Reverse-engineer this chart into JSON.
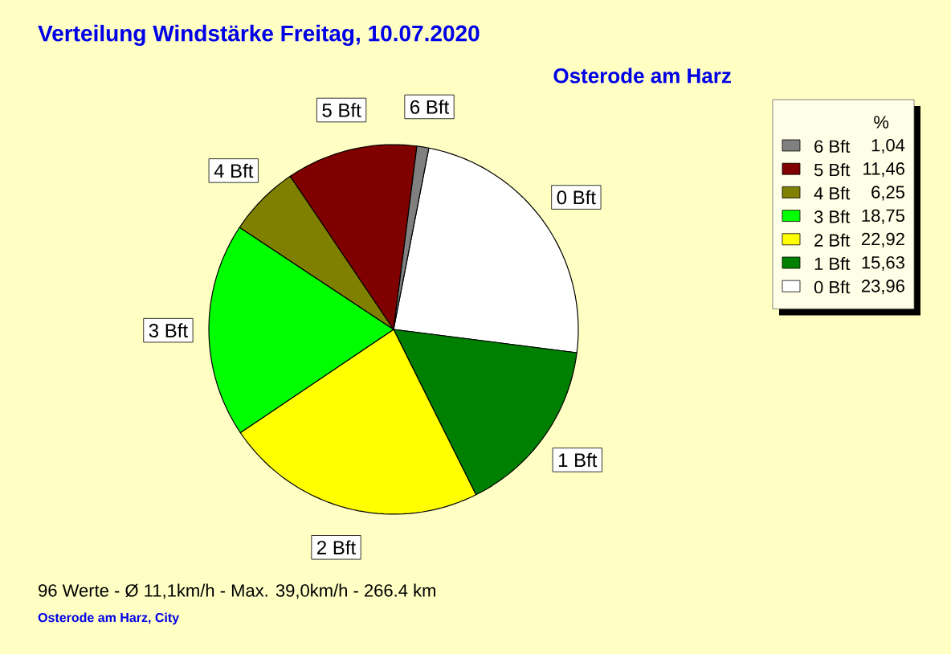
{
  "chart_data": {
    "type": "pie",
    "title": "Verteilung Windstärke  Freitag, 10.07.2020",
    "subtitle": "Osterode am Harz",
    "categories": [
      "6 Bft",
      "5 Bft",
      "4 Bft",
      "3 Bft",
      "2 Bft",
      "1 Bft",
      "0 Bft"
    ],
    "values": [
      1.04,
      11.46,
      6.25,
      18.75,
      22.92,
      15.63,
      23.96
    ],
    "value_labels": [
      "1,04",
      "11,46",
      "6,25",
      "18,75",
      "22,92",
      "15,63",
      "23,96"
    ],
    "colors": [
      "#808080",
      "#800000",
      "#808000",
      "#00ff00",
      "#ffff00",
      "#008000",
      "#ffffff"
    ],
    "legend": "top right",
    "legend_title": "%",
    "annotations": [
      "96 Werte   -   Ø 11,1km/h  -  Max. 39,0km/h   -   266.4 km",
      "Osterode am Harz, City"
    ]
  }
}
